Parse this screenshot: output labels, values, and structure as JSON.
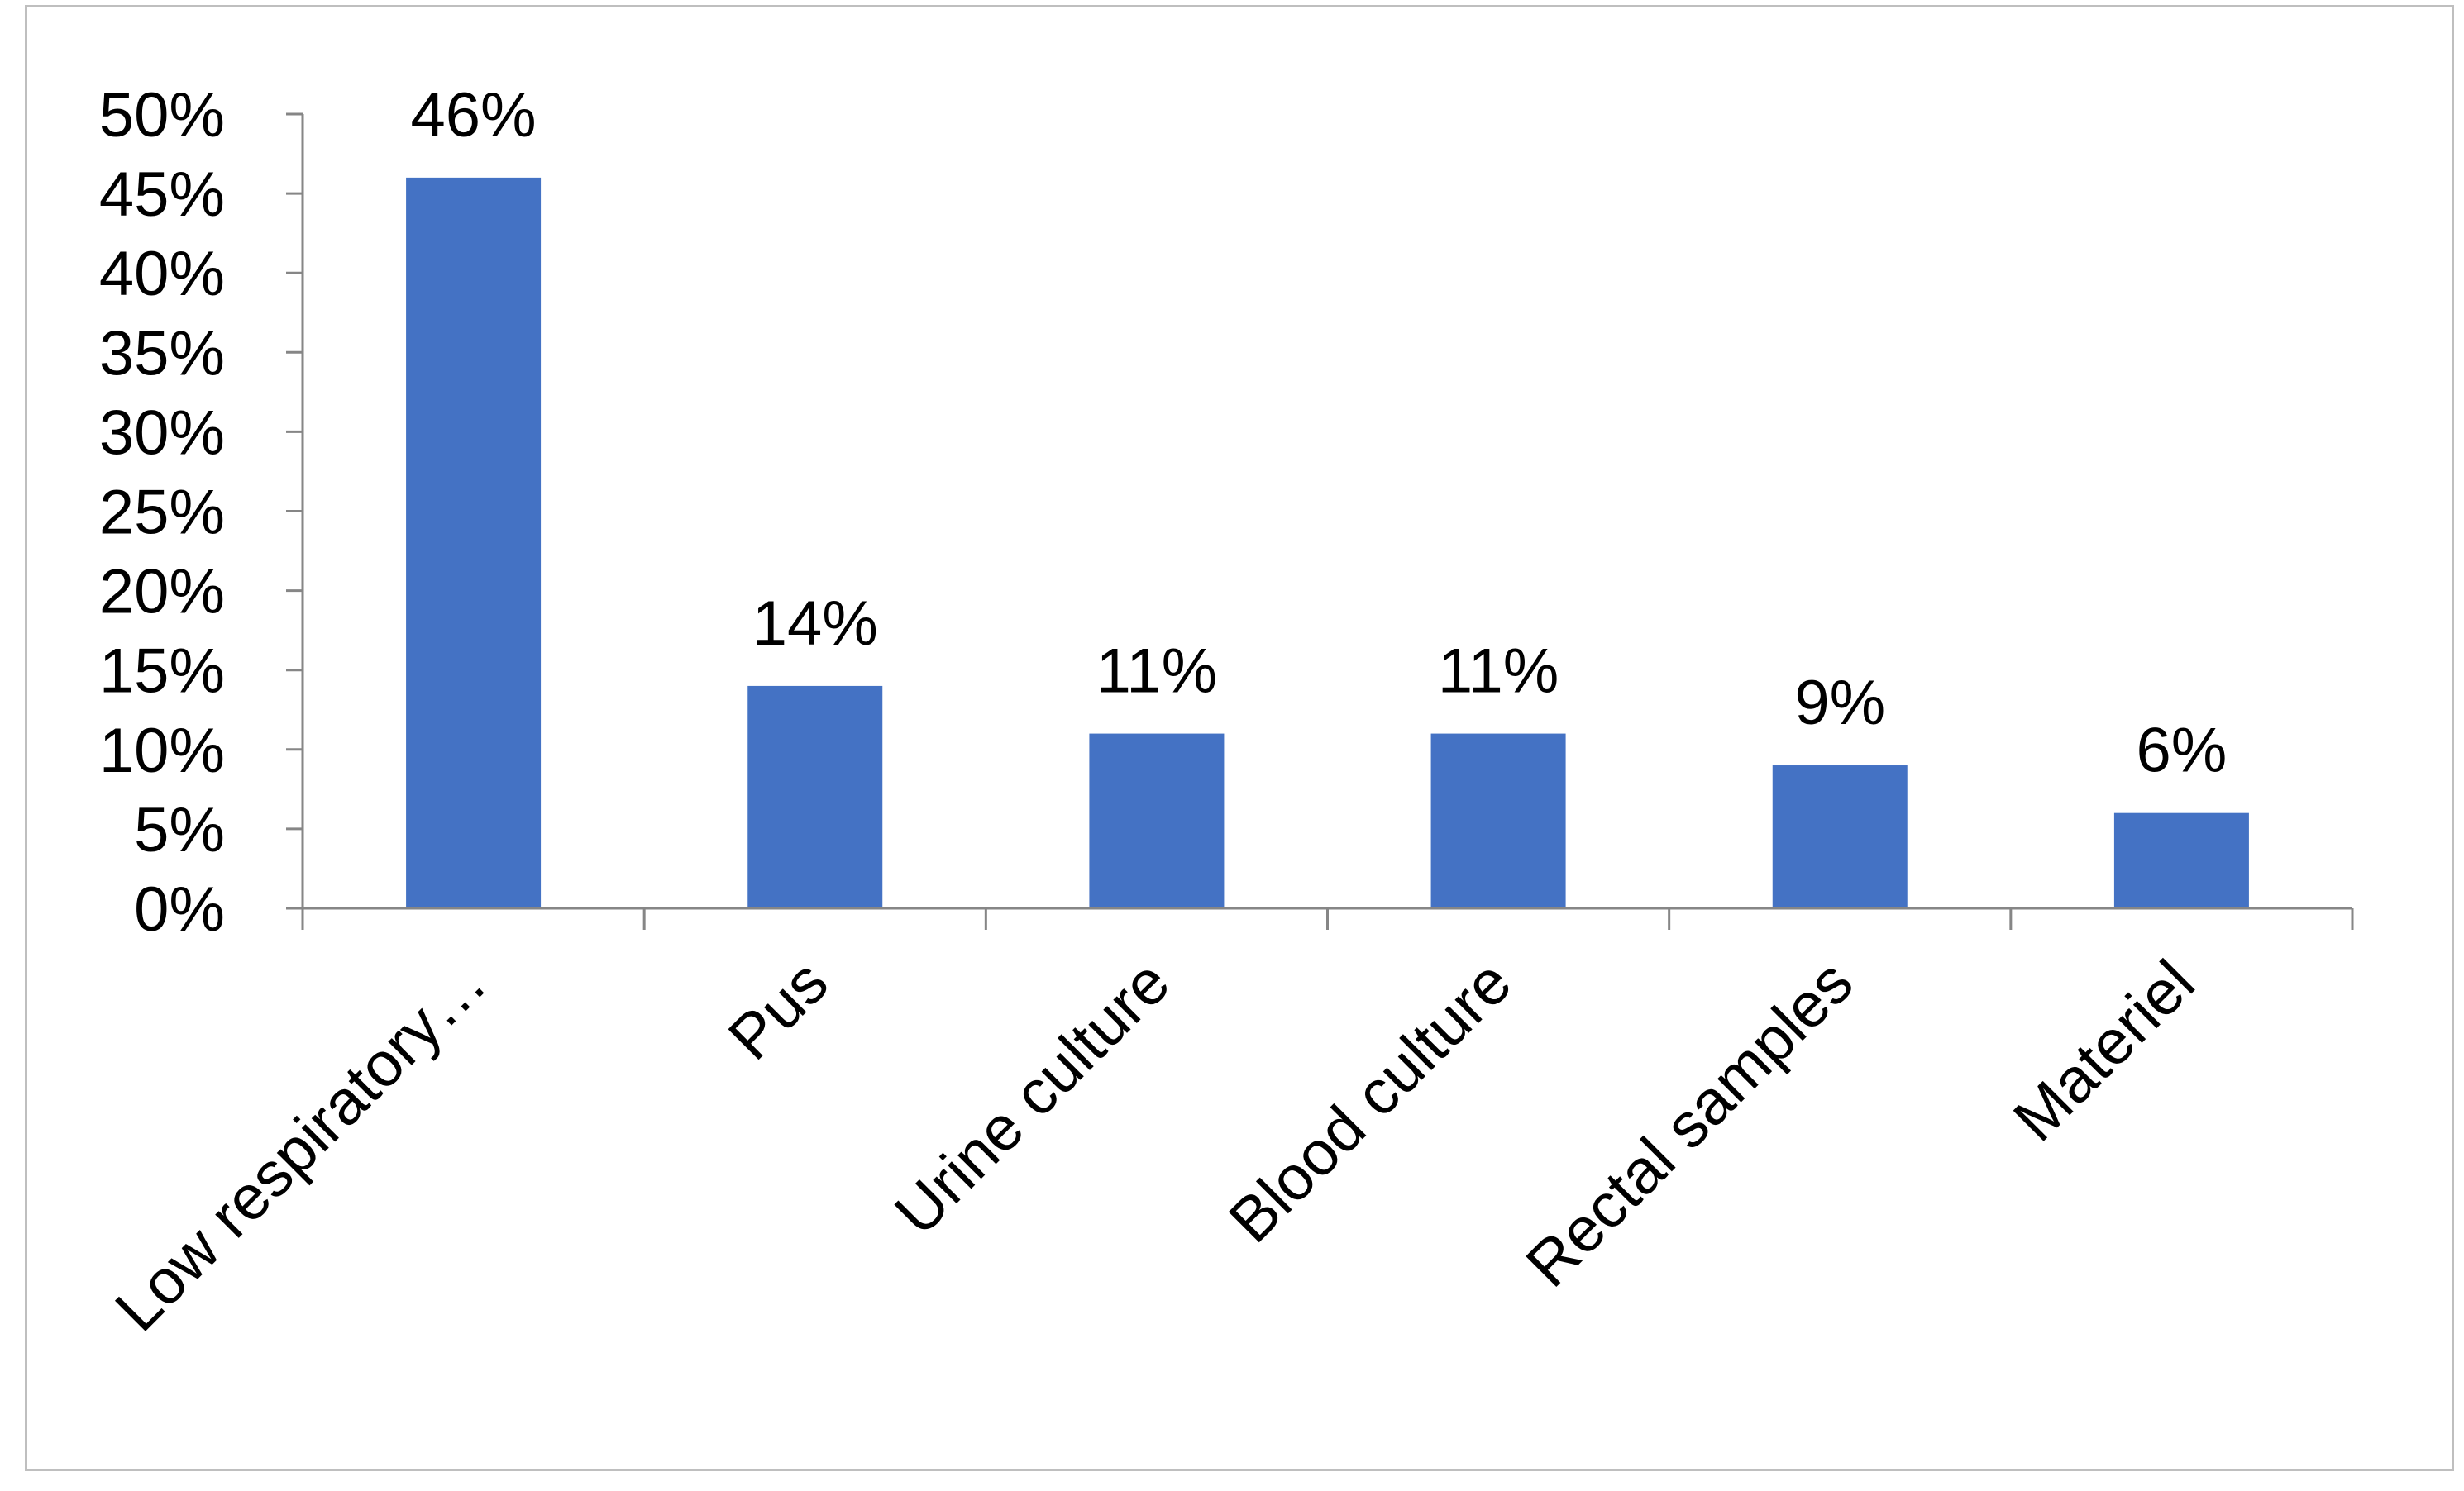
{
  "chart_data": {
    "type": "bar",
    "title": "",
    "xlabel": "",
    "ylabel": "",
    "categories": [
      "Low respiratory…",
      "Pus",
      "Urine culture",
      "Blood culture",
      "Rectal samples",
      "Materiel"
    ],
    "values": [
      46,
      14,
      11,
      11,
      9,
      6
    ],
    "data_labels": [
      "46%",
      "14%",
      "11%",
      "11%",
      "9%",
      "6%"
    ],
    "ylim": [
      0,
      50
    ],
    "y_ticks": [
      0,
      5,
      10,
      15,
      20,
      25,
      30,
      35,
      40,
      45,
      50
    ],
    "y_tick_labels": [
      "0%",
      "5%",
      "10%",
      "15%",
      "20%",
      "25%",
      "30%",
      "35%",
      "40%",
      "45%",
      "50%"
    ],
    "grid": false,
    "legend": "none",
    "bar_color": "#4472c4",
    "axis_color": "#868686"
  }
}
